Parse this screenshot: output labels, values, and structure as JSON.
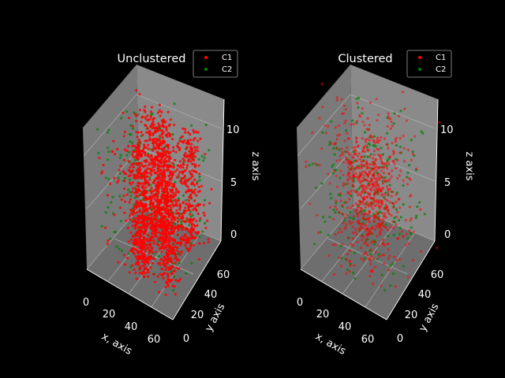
{
  "chart_data": [
    {
      "type": "scatter",
      "subtype": "3d-scatter",
      "title": "Unclustered",
      "xlabel": "x, axis",
      "ylabel": "y axis",
      "zlabel": "z axis",
      "x_ticks": [
        "0",
        "20",
        "40",
        "60"
      ],
      "y_ticks": [
        "0",
        "20",
        "40",
        "60"
      ],
      "z_ticks": [
        "0",
        "5",
        "10"
      ],
      "xlim": [
        -5,
        75
      ],
      "ylim": [
        -5,
        75
      ],
      "zlim": [
        -1,
        12.5
      ],
      "legend": {
        "placement": "top-right",
        "entries": [
          "C1",
          "C2"
        ]
      },
      "series": [
        {
          "name": "C1",
          "color": "#ff0000",
          "approx_points": 1500,
          "description_regions": [
            [
              25,
              40,
              0,
              11
            ],
            [
              45,
              60,
              0,
              11
            ]
          ]
        },
        {
          "name": "C2",
          "color": "#008000",
          "approx_points": 250
        }
      ]
    },
    {
      "type": "scatter",
      "subtype": "3d-scatter",
      "title": "Clustered",
      "xlabel": "x, axis",
      "ylabel": "y axis",
      "zlabel": "z axis",
      "x_ticks": [
        "0",
        "20",
        "40",
        "60"
      ],
      "y_ticks": [
        "0",
        "20",
        "40",
        "60"
      ],
      "z_ticks": [
        "0",
        "5",
        "10"
      ],
      "xlim": [
        -5,
        75
      ],
      "ylim": [
        -5,
        75
      ],
      "zlim": [
        -1,
        12.5
      ],
      "legend": {
        "placement": "top-right",
        "entries": [
          "C1",
          "C2"
        ]
      },
      "series": [
        {
          "name": "C1",
          "color": "#ff0000",
          "approx_points": 700
        },
        {
          "name": "C2",
          "color": "#008000",
          "approx_points": 200
        }
      ]
    }
  ],
  "style": {
    "background": "#000000",
    "pane": "#7f7f7f",
    "text": "#ffffff"
  }
}
